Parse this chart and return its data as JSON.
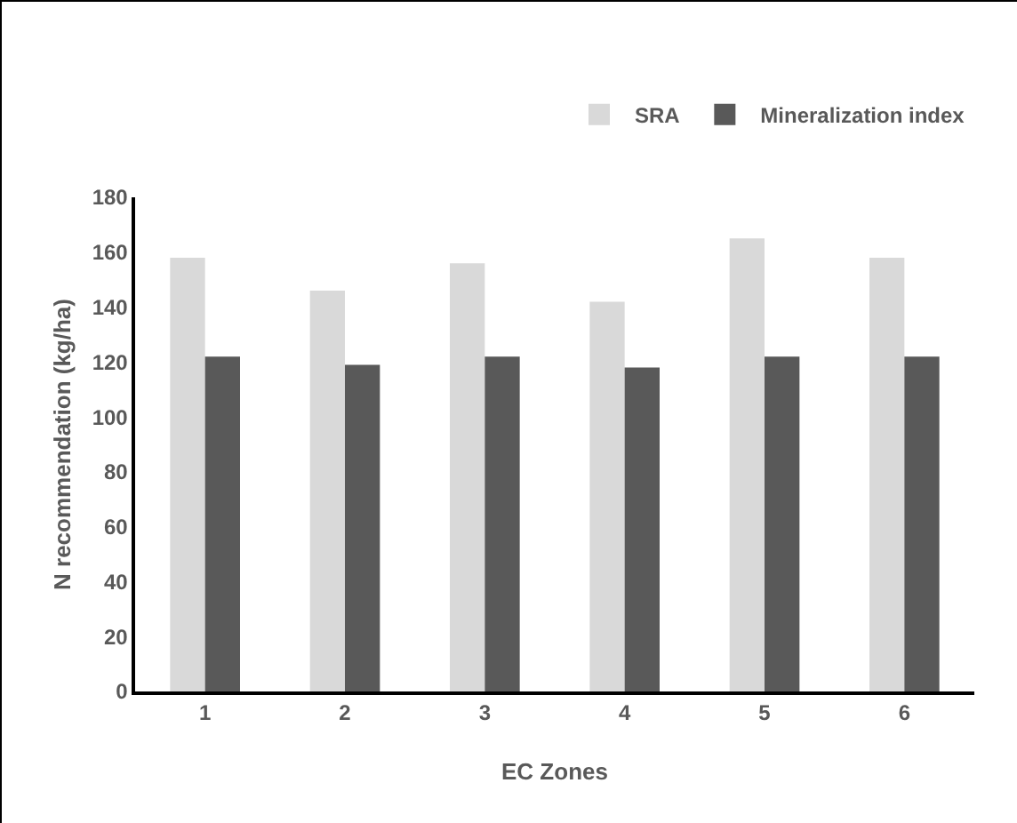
{
  "chart_data": {
    "type": "bar",
    "xlabel": "EC Zones",
    "ylabel": "N recommendation (kg/ha)",
    "categories": [
      "1",
      "2",
      "3",
      "4",
      "5",
      "6"
    ],
    "series": [
      {
        "name": "SRA",
        "color": "#d9d9d9",
        "values": [
          158,
          146,
          156,
          142,
          165,
          158
        ]
      },
      {
        "name": "Mineralization index",
        "color": "#595959",
        "values": [
          122,
          119,
          122,
          118,
          122,
          122
        ]
      }
    ],
    "ylim": [
      0,
      180
    ],
    "yticks": [
      0,
      20,
      40,
      60,
      80,
      100,
      120,
      140,
      160,
      180
    ],
    "grid": false,
    "legend": "top right"
  }
}
